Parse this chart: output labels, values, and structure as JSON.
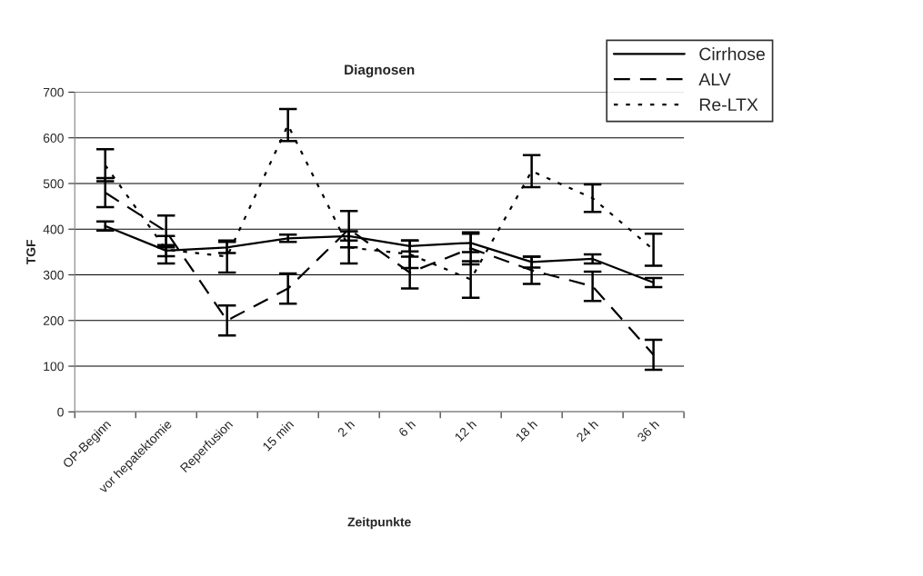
{
  "chart_data": {
    "type": "line",
    "title": "Diagnosen",
    "xlabel": "Zeitpunkte",
    "ylabel": "TGF",
    "categories": [
      "OP-Beginn",
      "vor hepatektomie",
      "Reperfusion",
      "15 min",
      "2 h",
      "6 h",
      "12 h",
      "18 h",
      "24 h",
      "36 h"
    ],
    "series": [
      {
        "name": "Cirrhose",
        "color": "#000000",
        "line_style": "solid",
        "values": [
          407,
          353,
          360,
          380,
          385,
          363,
          370,
          328,
          335,
          283
        ],
        "errors": [
          10,
          12,
          12,
          8,
          10,
          12,
          20,
          12,
          10,
          10
        ]
      },
      {
        "name": "ALV",
        "color": "#000000",
        "line_style": "dashed",
        "values": [
          480,
          395,
          200,
          270,
          400,
          305,
          358,
          310,
          275,
          125
        ],
        "errors": [
          32,
          35,
          33,
          33,
          40,
          35,
          35,
          30,
          32,
          33
        ]
      },
      {
        "name": "Re-LTX",
        "color": "#000000",
        "line_style": "dotted",
        "values": [
          540,
          355,
          340,
          628,
          360,
          345,
          290,
          527,
          468,
          355
        ],
        "errors": [
          35,
          30,
          35,
          35,
          35,
          30,
          40,
          35,
          30,
          35
        ]
      }
    ],
    "ylim": [
      0,
      700
    ],
    "yticks": [
      0,
      100,
      200,
      300,
      400,
      500,
      600,
      700
    ],
    "grid": "y",
    "legend": "top right"
  }
}
